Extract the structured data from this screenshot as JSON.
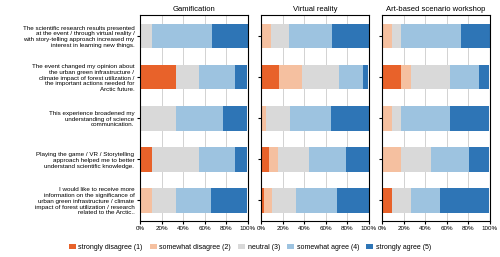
{
  "chart_data": [
    {
      "type": "bar",
      "orientation": "horizontal",
      "stacked": true,
      "grid": true,
      "title": "Gamification",
      "legend": "lower center",
      "categories": [
        "The scientific research results presented\nat the event / through virtual reality /\nwith story-telling approach increased my\ninterest in learning new things.",
        "The event changed my opinion about\nthe urban green infrastructure /\nclimate impact of forest utilization /\nthe important actions needed for\nArctic future.",
        "This experience broadened my\nunderstanding of science\ncommunication.",
        "Playing the game / VR / Storytelling\napproach helped me to better\nunderstand scientific knowledge.",
        "I would like to receive more\ninformation on the significance of\nurban green infrastructure / climate\nimpact of forest utilization / research\nrelated to the Arctic.."
      ],
      "xlim": [
        0,
        100
      ],
      "xticks": [
        {
          "value": 0,
          "label": "0%"
        },
        {
          "value": 20,
          "label": "20%"
        },
        {
          "value": 40,
          "label": "40%"
        },
        {
          "value": 60,
          "label": "60%"
        },
        {
          "value": 80,
          "label": "80%"
        },
        {
          "value": 100,
          "label": "100%"
        }
      ],
      "series": [
        {
          "name": "strongly disagree (1)",
          "color": "#E8622A",
          "values": [
            0,
            33,
            0,
            11,
            0
          ]
        },
        {
          "name": "somewhat disagree (2)",
          "color": "#F5C0A0",
          "values": [
            0,
            0,
            0,
            0,
            11
          ]
        },
        {
          "name": "neutral (3)",
          "color": "#D9D9D9",
          "values": [
            11,
            22,
            33,
            44,
            22
          ]
        },
        {
          "name": "somewhat agree (4)",
          "color": "#9DC3E0",
          "values": [
            56,
            33,
            44,
            33,
            33
          ]
        },
        {
          "name": "strongly agree (5)",
          "color": "#2E75B6",
          "values": [
            33,
            11,
            22,
            11,
            33
          ]
        }
      ]
    },
    {
      "type": "bar",
      "orientation": "horizontal",
      "stacked": true,
      "grid": true,
      "title": "Virtual reality",
      "tick_labels": "x",
      "categories": [
        "The scientific research results presented\nat the event / through virtual reality /\nwith story-telling approach increased my\ninterest in learning new things.",
        "The event changed my opinion about\nthe urban green infrastructure /\nclimate impact of forest utilization /\nthe important actions needed for\nArctic future.",
        "This experience broadened my\nunderstanding of science\ncommunication.",
        "Playing the game / VR / Storytelling\napproach helped me to better\nunderstand scientific knowledge.",
        "I would like to receive more\ninformation on the significance of\nurban green infrastructure / climate\nimpact of forest utilization / research\nrelated to the Arctic.."
      ],
      "xlim": [
        0,
        100
      ],
      "xticks": [
        {
          "value": 0,
          "label": "0%"
        },
        {
          "value": 20,
          "label": "20%"
        },
        {
          "value": 40,
          "label": "40%"
        },
        {
          "value": 60,
          "label": "60%"
        },
        {
          "value": 80,
          "label": "80%"
        },
        {
          "value": 100,
          "label": "100%"
        }
      ],
      "series": [
        {
          "name": "strongly disagree (1)",
          "color": "#E8622A",
          "values": [
            0,
            17,
            0,
            7,
            3
          ]
        },
        {
          "name": "somewhat disagree (2)",
          "color": "#F5C0A0",
          "values": [
            9,
            21,
            5,
            9,
            7
          ]
        },
        {
          "name": "neutral (3)",
          "color": "#D9D9D9",
          "values": [
            17,
            34,
            22,
            28,
            22
          ]
        },
        {
          "name": "somewhat agree (4)",
          "color": "#9DC3E0",
          "values": [
            40,
            22,
            38,
            35,
            38
          ]
        },
        {
          "name": "strongly agree (5)",
          "color": "#2E75B6",
          "values": [
            34,
            5,
            35,
            21,
            30
          ]
        }
      ]
    },
    {
      "type": "bar",
      "orientation": "horizontal",
      "stacked": true,
      "grid": true,
      "title": "Art-based scenario workshop",
      "tick_labels": "x",
      "categories": [
        "The scientific research results presented\nat the event / through virtual reality /\nwith story-telling approach increased my\ninterest in learning new things.",
        "The event changed my opinion about\nthe urban green infrastructure /\nclimate impact of forest utilization /\nthe important actions needed for\nArctic future.",
        "This experience broadened my\nunderstanding of science\ncommunication.",
        "Playing the game / VR / Storytelling\napproach helped me to better\nunderstand scientific knowledge.",
        "I would like to receive more\ninformation on the significance of\nurban green infrastructure / climate\nimpact of forest utilization / research\nrelated to the Arctic.."
      ],
      "xlim": [
        0,
        100
      ],
      "xticks": [
        {
          "value": 0,
          "label": "0%"
        },
        {
          "value": 20,
          "label": "20%"
        },
        {
          "value": 40,
          "label": "40%"
        },
        {
          "value": 60,
          "label": "60%"
        },
        {
          "value": 80,
          "label": "80%"
        },
        {
          "value": 100,
          "label": "100%"
        }
      ],
      "series": [
        {
          "name": "strongly disagree (1)",
          "color": "#E8622A",
          "values": [
            0,
            18,
            0,
            0,
            9
          ]
        },
        {
          "name": "somewhat disagree (2)",
          "color": "#F5C0A0",
          "values": [
            9,
            9,
            9,
            18,
            0
          ]
        },
        {
          "name": "neutral (3)",
          "color": "#D9D9D9",
          "values": [
            9,
            36,
            9,
            27,
            18
          ]
        },
        {
          "name": "somewhat agree (4)",
          "color": "#9DC3E0",
          "values": [
            55,
            27,
            45,
            36,
            27
          ]
        },
        {
          "name": "strongly agree (5)",
          "color": "#2E75B6",
          "values": [
            27,
            9,
            36,
            18,
            45
          ]
        }
      ]
    }
  ]
}
